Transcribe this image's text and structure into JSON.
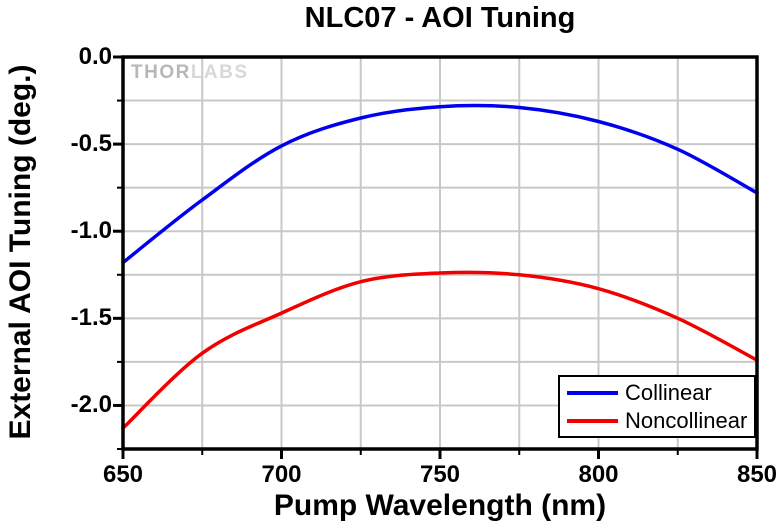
{
  "watermark": {
    "part1": "THOR",
    "part2": "LABS"
  },
  "colors": {
    "background": "#ffffff",
    "axis": "#000000",
    "grid": "#c8c8c8",
    "text": "#000000",
    "collinear": "#0000ee",
    "noncollinear": "#f20000"
  },
  "legend": {
    "border_color": "#000000"
  },
  "chart_data": {
    "type": "line",
    "title": "NLC07 - AOI Tuning",
    "xlabel": "Pump Wavelength (nm)",
    "ylabel": "External AOI Tuning (deg.)",
    "xlim": [
      650,
      850
    ],
    "ylim": [
      -2.25,
      0
    ],
    "grid": true,
    "grid_x_step": 25,
    "grid_y_step": 0.25,
    "legend_position": "lower right",
    "x_major_ticks": [
      650,
      700,
      750,
      800,
      850
    ],
    "x_minor_ticks": [
      675,
      725,
      775,
      825
    ],
    "x_tick_labels": [
      "650",
      "700",
      "750",
      "800",
      "850"
    ],
    "y_major_ticks": [
      0,
      -0.5,
      -1,
      -1.5,
      -2
    ],
    "y_minor_ticks": [
      -0.25,
      -0.75,
      -1.25,
      -1.75,
      -2.25
    ],
    "y_tick_labels": [
      "0.0",
      "-0.5",
      "-1.0",
      "-1.5",
      "-2.0"
    ],
    "x": [
      650,
      675,
      700,
      725,
      750,
      775,
      800,
      825,
      850
    ],
    "series": [
      {
        "name": "Collinear",
        "color": "#0000ee",
        "values": [
          -1.18,
          -0.82,
          -0.51,
          -0.35,
          -0.285,
          -0.29,
          -0.37,
          -0.53,
          -0.78
        ]
      },
      {
        "name": "Noncollinear",
        "color": "#f20000",
        "values": [
          -2.13,
          -1.7,
          -1.47,
          -1.29,
          -1.24,
          -1.25,
          -1.33,
          -1.5,
          -1.74
        ]
      }
    ]
  }
}
